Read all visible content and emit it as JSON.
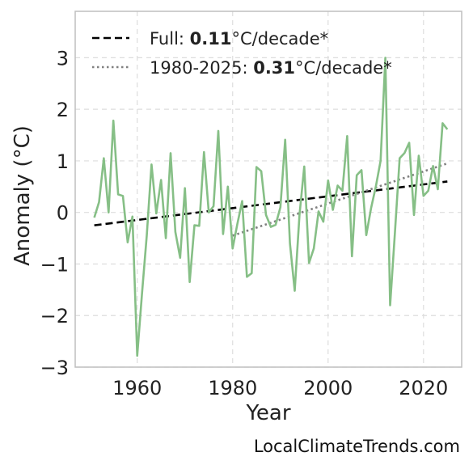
{
  "chart_data": {
    "type": "line",
    "xlabel": "Year",
    "ylabel": "Anomaly (°C)",
    "xlim": [
      1947,
      2028
    ],
    "ylim": [
      -3,
      3.9
    ],
    "xticks": [
      1960,
      1980,
      2000,
      2020
    ],
    "yticks": [
      -3,
      -2,
      -1,
      0,
      1,
      2,
      3
    ],
    "ytick_labels": [
      "−3",
      "−2",
      "−1",
      "0",
      "1",
      "2",
      "3"
    ],
    "grid": true,
    "legend_position": "top-left",
    "series": [
      {
        "x": [
          1951,
          1952,
          1953,
          1954,
          1955,
          1956,
          1957,
          1958,
          1959,
          1960,
          1961,
          1962,
          1963,
          1964,
          1965,
          1966,
          1967,
          1968,
          1969,
          1970,
          1971,
          1972,
          1973,
          1974,
          1975,
          1976,
          1977,
          1978,
          1979,
          1980,
          1981,
          1982,
          1983,
          1984,
          1985,
          1986,
          1987,
          1988,
          1989,
          1990,
          1991,
          1992,
          1993,
          1994,
          1995,
          1996,
          1997,
          1998,
          1999,
          2000,
          2001,
          2002,
          2003,
          2004,
          2005,
          2006,
          2007,
          2008,
          2009,
          2010,
          2011,
          2012,
          2013,
          2014,
          2015,
          2016,
          2017,
          2018,
          2019,
          2020,
          2021,
          2022,
          2023,
          2024,
          2025
        ],
        "values": [
          -0.1,
          0.2,
          1.05,
          0.0,
          1.78,
          0.35,
          0.32,
          -0.58,
          -0.08,
          -2.78,
          -1.58,
          -0.45,
          0.93,
          -0.02,
          0.63,
          -0.5,
          1.15,
          -0.38,
          -0.88,
          0.47,
          -1.35,
          -0.25,
          -0.26,
          1.17,
          0.0,
          0.12,
          1.58,
          -0.42,
          0.5,
          -0.7,
          -0.22,
          0.22,
          -1.25,
          -1.18,
          0.88,
          0.8,
          -0.05,
          -0.28,
          -0.24,
          0.1,
          1.41,
          -0.6,
          -1.52,
          -0.05,
          0.89,
          -0.98,
          -0.7,
          0.02,
          -0.18,
          0.62,
          0.05,
          0.52,
          0.42,
          1.48,
          -0.85,
          0.72,
          0.82,
          -0.44,
          0.08,
          0.5,
          1.0,
          3.0,
          -1.8,
          -0.4,
          1.05,
          1.15,
          1.35,
          -0.05,
          1.1,
          0.32,
          0.42,
          0.9,
          0.45,
          1.73,
          1.61
        ],
        "color": "#86bf86"
      }
    ],
    "trend_lines": [
      {
        "label_prefix": "Full: ",
        "label_value": "0.11",
        "label_suffix": "°C/decade*",
        "x": [
          1951,
          2025
        ],
        "y": [
          -0.25,
          0.6
        ],
        "color": "#000000",
        "style": "dashed"
      },
      {
        "label_prefix": "1980-2025: ",
        "label_value": "0.31",
        "label_suffix": "°C/decade*",
        "x": [
          1980,
          2025
        ],
        "y": [
          -0.45,
          0.95
        ],
        "color": "#808080",
        "style": "dotted"
      }
    ]
  },
  "watermark": "LocalClimateTrends.com"
}
